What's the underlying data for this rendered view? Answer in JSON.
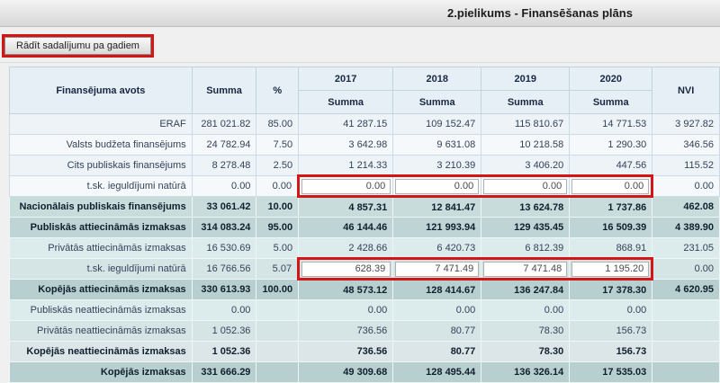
{
  "titlebar": {
    "title": "2.pielikums - Finansēšanas plāns"
  },
  "toolbar": {
    "show_by_years_button": "Rādīt sadalījumu pa gadiem"
  },
  "colors": {
    "highlight_red": "#d21515",
    "header_cell_bg": "#e7eff6",
    "teal_section_dark": "#b8cfcf",
    "teal_section_light": "#dcebeb"
  },
  "table": {
    "headers": {
      "source": "Finansējuma avots",
      "summa": "Summa",
      "percent": "%",
      "years": [
        "2017",
        "2018",
        "2019",
        "2020"
      ],
      "year_subheader": "Summa",
      "nvi": "NVI"
    },
    "rows": [
      {
        "label": "ERAF",
        "summa": "281 021.82",
        "percent": "85.00",
        "y2017": "41 287.15",
        "y2018": "109 152.47",
        "y2019": "115 810.67",
        "y2020": "14 771.53",
        "nvi": "3 927.82"
      },
      {
        "label": "Valsts budžeta finansējums",
        "summa": "24 782.94",
        "percent": "7.50",
        "y2017": "3 642.98",
        "y2018": "9 631.08",
        "y2019": "10 218.58",
        "y2020": "1 290.30",
        "nvi": "346.56"
      },
      {
        "label": "Cits publiskais finansējums",
        "summa": "8 278.48",
        "percent": "2.50",
        "y2017": "1 214.33",
        "y2018": "3 210.39",
        "y2019": "3 406.20",
        "y2020": "447.56",
        "nvi": "115.52"
      },
      {
        "label": "t.sk. ieguldījumi natūrā",
        "summa": "0.00",
        "percent": "0.00",
        "y2017": "0.00",
        "y2018": "0.00",
        "y2019": "0.00",
        "y2020": "0.00",
        "nvi": "0.00"
      },
      {
        "label": "Nacionālais publiskais finansējums",
        "summa": "33 061.42",
        "percent": "10.00",
        "y2017": "4 857.31",
        "y2018": "12 841.47",
        "y2019": "13 624.78",
        "y2020": "1 737.86",
        "nvi": "462.08"
      },
      {
        "label": "Publiskās attiecināmās izmaksas",
        "summa": "314 083.24",
        "percent": "95.00",
        "y2017": "46 144.46",
        "y2018": "121 993.94",
        "y2019": "129 435.45",
        "y2020": "16 509.39",
        "nvi": "4 389.90"
      },
      {
        "label": "Privātās attiecināmās izmaksas",
        "summa": "16 530.69",
        "percent": "5.00",
        "y2017": "2 428.66",
        "y2018": "6 420.73",
        "y2019": "6 812.39",
        "y2020": "868.91",
        "nvi": "231.05"
      },
      {
        "label": "t.sk. ieguldījumi natūrā",
        "summa": "16 766.56",
        "percent": "5.07",
        "y2017": "628.39",
        "y2018": "7 471.49",
        "y2019": "7 471.48",
        "y2020": "1 195.20",
        "nvi": "0.00"
      },
      {
        "label": "Kopējās attiecināmās izmaksas",
        "summa": "330 613.93",
        "percent": "100.00",
        "y2017": "48 573.12",
        "y2018": "128 414.67",
        "y2019": "136 247.84",
        "y2020": "17 378.30",
        "nvi": "4 620.95"
      },
      {
        "label": "Publiskās neattiecināmās izmaksas",
        "summa": "0.00",
        "percent": "",
        "y2017": "0.00",
        "y2018": "0.00",
        "y2019": "0.00",
        "y2020": "0.00",
        "nvi": ""
      },
      {
        "label": "Privātās neattiecināmās izmaksas",
        "summa": "1 052.36",
        "percent": "",
        "y2017": "736.56",
        "y2018": "80.77",
        "y2019": "78.30",
        "y2020": "156.73",
        "nvi": ""
      },
      {
        "label": "Kopējās neattiecināmās izmaksas",
        "summa": "1 052.36",
        "percent": "",
        "y2017": "736.56",
        "y2018": "80.77",
        "y2019": "78.30",
        "y2020": "156.73",
        "nvi": ""
      },
      {
        "label": "Kopējās izmaksas",
        "summa": "331 666.29",
        "percent": "",
        "y2017": "49 309.68",
        "y2018": "128 495.44",
        "y2019": "136 326.14",
        "y2020": "17 535.03",
        "nvi": ""
      }
    ]
  }
}
